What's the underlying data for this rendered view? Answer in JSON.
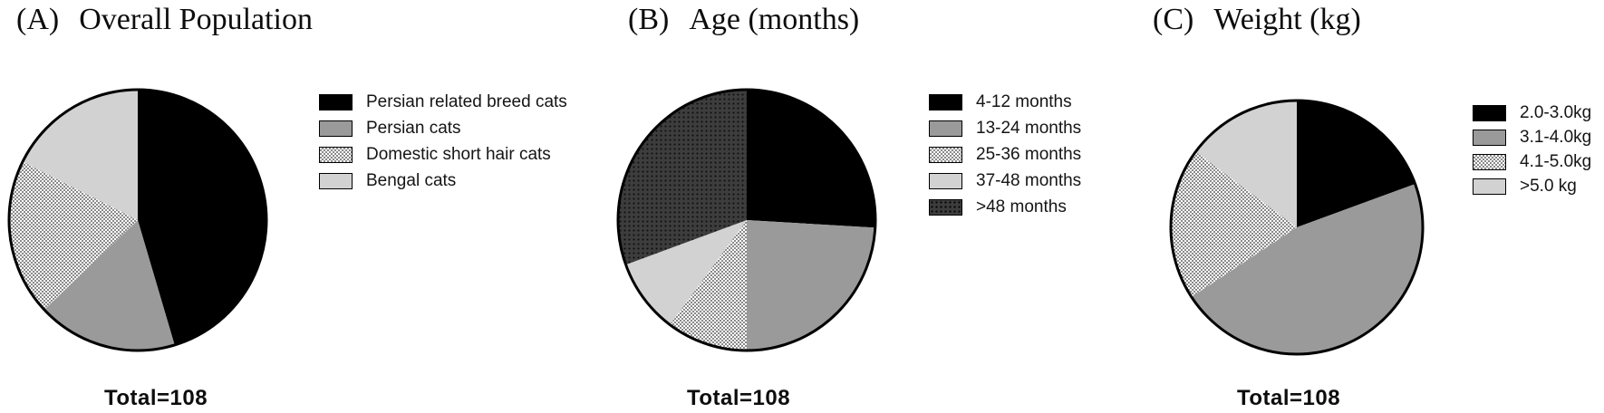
{
  "figure": {
    "background": "#ffffff",
    "total_shown_per_panel": "Total=108"
  },
  "panels": [
    {
      "label": "(A)",
      "title": "Overall Population",
      "total_label": "Total=108"
    },
    {
      "label": "(B)",
      "title": "Age (months)",
      "total_label": "Total=108"
    },
    {
      "label": "(C)",
      "title": "Weight (kg)",
      "total_label": "Total=108"
    }
  ],
  "colors": {
    "slice_black": "#000000",
    "slice_gray": "#9a9a9a",
    "slice_light_gray": "#d2d2d2",
    "checker_gray_on_white": "#8a8a8a",
    "dots_base_dark": "#3d3d3d",
    "dots_dot": "#0b0b0b",
    "outline": "#000000",
    "text": "#0d0d0d"
  },
  "chart_data": [
    {
      "type": "pie",
      "panel": "A",
      "title": "Overall Population",
      "total": 108,
      "categories": [
        "Persian related breed cats",
        "Persian cats",
        "Domestic short hair cats",
        "Bengal cats"
      ],
      "values": [
        49,
        19,
        21,
        19
      ],
      "percent": [
        45.4,
        17.6,
        19.4,
        17.6
      ],
      "fills": [
        "solid-black",
        "solid-gray",
        "checker",
        "solid-lightgray"
      ],
      "start_angle_deg": 0,
      "direction": "clockwise",
      "legend_position": "right"
    },
    {
      "type": "pie",
      "panel": "B",
      "title": "Age (months)",
      "total": 108,
      "categories": [
        "4-12 months",
        "13-24 months",
        "25-36 months",
        "37-48 months",
        ">48 months"
      ],
      "values": [
        28,
        26,
        11,
        10,
        33
      ],
      "percent": [
        25.9,
        24.1,
        10.2,
        9.3,
        30.6
      ],
      "fills": [
        "solid-black",
        "solid-gray",
        "checker",
        "solid-lightgray",
        "dots-dark"
      ],
      "start_angle_deg": 0,
      "direction": "clockwise",
      "legend_position": "right"
    },
    {
      "type": "pie",
      "panel": "C",
      "title": "Weight (kg)",
      "total": 108,
      "categories": [
        "2.0-3.0kg",
        "3.1-4.0kg",
        "4.1-5.0kg",
        ">5.0 kg"
      ],
      "values": [
        21,
        50,
        21,
        16
      ],
      "percent": [
        19.4,
        46.3,
        19.4,
        14.8
      ],
      "fills": [
        "solid-black",
        "solid-gray",
        "checker",
        "solid-lightgray"
      ],
      "start_angle_deg": 0,
      "direction": "clockwise",
      "legend_position": "right"
    }
  ]
}
